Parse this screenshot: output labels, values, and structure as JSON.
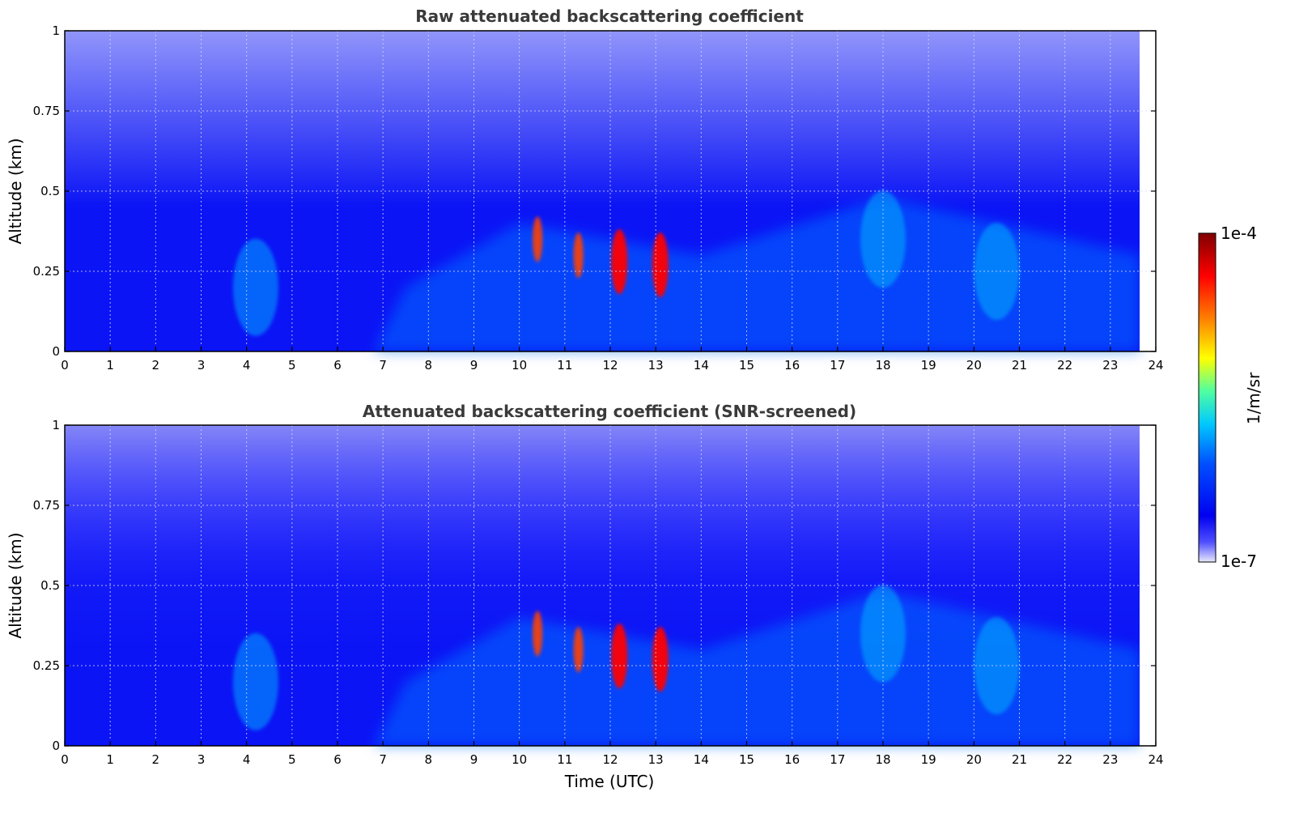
{
  "chart_data": [
    {
      "type": "heatmap",
      "title": "Raw attenuated backscattering coefficient",
      "xlabel": "",
      "ylabel": "Altitude (km)",
      "xlim": [
        0,
        24
      ],
      "ylim": [
        0,
        1
      ],
      "x_ticks": [
        "0",
        "1",
        "2",
        "3",
        "4",
        "5",
        "6",
        "7",
        "8",
        "9",
        "10",
        "11",
        "12",
        "13",
        "14",
        "15",
        "16",
        "17",
        "18",
        "19",
        "20",
        "21",
        "22",
        "23",
        "24"
      ],
      "y_ticks": [
        "0",
        "0.25",
        "0.5",
        "0.75",
        "1"
      ],
      "y_tick_values": [
        0,
        0.25,
        0.5,
        0.75,
        1
      ],
      "data_x_end": 23.65,
      "grid": true,
      "features": [
        {
          "time": 4.2,
          "altitude": 0.2,
          "value": "moderate"
        },
        {
          "time": 10.4,
          "altitude": 0.35,
          "value": "high"
        },
        {
          "time": 11.3,
          "altitude": 0.3,
          "value": "high"
        },
        {
          "time": 12.2,
          "altitude": 0.28,
          "value": "peak"
        },
        {
          "time": 13.1,
          "altitude": 0.27,
          "value": "peak"
        },
        {
          "time": 18.0,
          "altitude": 0.35,
          "value": "moderate"
        },
        {
          "time": 20.5,
          "altitude": 0.25,
          "value": "moderate"
        }
      ]
    },
    {
      "type": "heatmap",
      "title": "Attenuated backscattering coefficient (SNR-screened)",
      "xlabel": "Time (UTC)",
      "ylabel": "Altitude (km)",
      "xlim": [
        0,
        24
      ],
      "ylim": [
        0,
        1
      ],
      "x_ticks": [
        "0",
        "1",
        "2",
        "3",
        "4",
        "5",
        "6",
        "7",
        "8",
        "9",
        "10",
        "11",
        "12",
        "13",
        "14",
        "15",
        "16",
        "17",
        "18",
        "19",
        "20",
        "21",
        "22",
        "23",
        "24"
      ],
      "y_ticks": [
        "0",
        "0.25",
        "0.5",
        "0.75",
        "1"
      ],
      "y_tick_values": [
        0,
        0.25,
        0.5,
        0.75,
        1
      ],
      "data_x_end": 23.65,
      "grid": true,
      "features": [
        {
          "time": 4.2,
          "altitude": 0.2,
          "value": "moderate"
        },
        {
          "time": 10.4,
          "altitude": 0.35,
          "value": "high"
        },
        {
          "time": 11.3,
          "altitude": 0.3,
          "value": "high"
        },
        {
          "time": 12.2,
          "altitude": 0.28,
          "value": "peak"
        },
        {
          "time": 13.1,
          "altitude": 0.27,
          "value": "peak"
        },
        {
          "time": 18.0,
          "altitude": 0.35,
          "value": "moderate"
        },
        {
          "time": 20.5,
          "altitude": 0.25,
          "value": "moderate"
        }
      ]
    }
  ],
  "colorbar": {
    "label": "1/m/sr",
    "max_label": "1e-4",
    "min_label": "1e-7",
    "colormap": [
      "#e8e8fb",
      "#5050ff",
      "#0000f0",
      "#0050ff",
      "#00c8ff",
      "#50ffa0",
      "#ffff00",
      "#ff8000",
      "#ff0000",
      "#800000"
    ]
  }
}
